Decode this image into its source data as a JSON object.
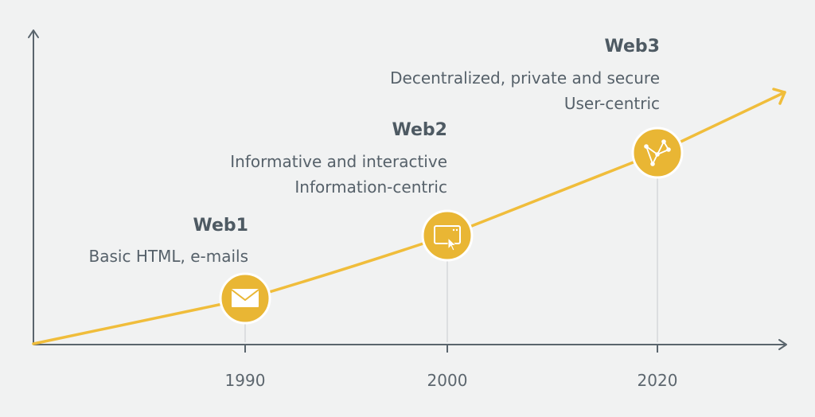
{
  "colors": {
    "background": "#f1f2f2",
    "axis": "#5a656d",
    "trend": "#f0bd3b",
    "node": "#e9b634",
    "node_ring": "#ffffff",
    "icon": "#ffffff",
    "guide": "#d5d8da"
  },
  "eras": [
    {
      "title": "Web1",
      "lines": [
        "Basic HTML, e-mails"
      ],
      "year": "1990",
      "icon": "envelope-icon"
    },
    {
      "title": "Web2",
      "lines": [
        "Informative and interactive",
        "Information-centric"
      ],
      "year": "2000",
      "icon": "browser-window-cursor-icon"
    },
    {
      "title": "Web3",
      "lines": [
        "Decentralized, private and secure",
        "User-centric"
      ],
      "year": "2020",
      "icon": "network-nodes-icon"
    }
  ]
}
